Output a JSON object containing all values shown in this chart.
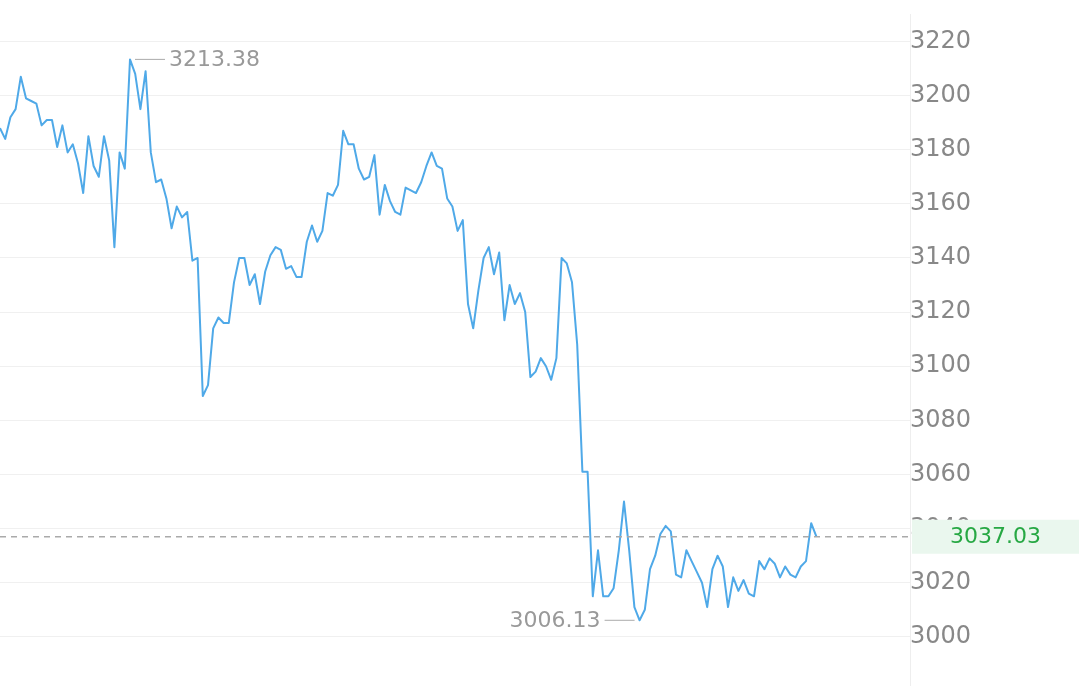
{
  "chart_data": {
    "type": "line",
    "categories": [
      null,
      null,
      null,
      null,
      null,
      null,
      null,
      null,
      null,
      null,
      null,
      null,
      null,
      null,
      null,
      null,
      null,
      null,
      null,
      null,
      null,
      null,
      null,
      null,
      null,
      null,
      null,
      null,
      null,
      null,
      null,
      null,
      null,
      null,
      null,
      null,
      null,
      null,
      null,
      null,
      null,
      null,
      null,
      null,
      null,
      null,
      null,
      null,
      null,
      null,
      null,
      null,
      null,
      null,
      null,
      null,
      null,
      null,
      null,
      null,
      null,
      null,
      null,
      null,
      null,
      null,
      null,
      null,
      null,
      null,
      null,
      null,
      null,
      null,
      null,
      null,
      null,
      null,
      null,
      null,
      null,
      null,
      null,
      null,
      null,
      null,
      null,
      null,
      null,
      null,
      null,
      null,
      null,
      null,
      null,
      null,
      null,
      null,
      null,
      null,
      null,
      null,
      null,
      null,
      null,
      null,
      null,
      null,
      null,
      null,
      null,
      null,
      null,
      null,
      null,
      null,
      null,
      null,
      null,
      null,
      null,
      null,
      null,
      null,
      null,
      null,
      null,
      null,
      null,
      null,
      null,
      null,
      null,
      null,
      null,
      null,
      null,
      null,
      null,
      null,
      null,
      null,
      null,
      null,
      null,
      null,
      null,
      null,
      null,
      null,
      null,
      null,
      null,
      null,
      null,
      null,
      null,
      null,
      null,
      null,
      null,
      null,
      null,
      null,
      null,
      null,
      null,
      null,
      null,
      null,
      null,
      null,
      null,
      null,
      null,
      null
    ],
    "series": [
      {
        "color": "#4fa9e8",
        "values": [
          3188,
          3184,
          3192,
          3195,
          3207,
          3199,
          3198,
          3197,
          3189,
          3191,
          3191,
          3181,
          3189,
          3179,
          3182,
          3175,
          3164,
          3185,
          3174,
          3170,
          3185,
          3176,
          3144,
          3179,
          3173,
          3213.38,
          3208,
          3195,
          3209,
          3179,
          3168,
          3169,
          3162,
          3151,
          3159,
          3155,
          3157,
          3139,
          3140,
          3089,
          3093,
          3114,
          3118,
          3116,
          3116,
          3131,
          3140,
          3140,
          3130,
          3134,
          3123,
          3135,
          3141,
          3144,
          3143,
          3136,
          3137,
          3133,
          3133,
          3146,
          3152,
          3146,
          3150,
          3164,
          3163,
          3167,
          3187,
          3182,
          3182,
          3173,
          3169,
          3170,
          3178,
          3156,
          3167,
          3161,
          3157,
          3156,
          3166,
          3165,
          3164,
          3168,
          3174,
          3179,
          3174,
          3173,
          3162,
          3159,
          3150,
          3154,
          3123,
          3114,
          3128,
          3140,
          3144,
          3134,
          3142,
          3117,
          3130,
          3123,
          3127,
          3120,
          3096,
          3098,
          3103,
          3100,
          3095,
          3103,
          3140,
          3138,
          3131,
          3108,
          3061,
          3061,
          3015,
          3032,
          3015,
          3015,
          3018,
          3032,
          3050,
          3032,
          3011,
          3006.13,
          3010,
          3025,
          3030,
          3038,
          3041,
          3039,
          3023,
          3022,
          3032,
          3028,
          3024,
          3020,
          3011,
          3025,
          3030,
          3026,
          3011,
          3022,
          3017,
          3021,
          3016,
          3015,
          3028,
          3025,
          3029,
          3027,
          3022,
          3026,
          3023,
          3022,
          3026,
          3028,
          3042,
          3037.03,
          null,
          null,
          null,
          null,
          null,
          null,
          null,
          null,
          null,
          null,
          null,
          null,
          null,
          null,
          null,
          null,
          null,
          null
        ]
      }
    ],
    "ylim": [
      2982,
      3230
    ],
    "yticks": [
      3000,
      3020,
      3040,
      3060,
      3080,
      3100,
      3120,
      3140,
      3160,
      3180,
      3200,
      3220
    ],
    "grid": "y",
    "legend": false,
    "marker": "none",
    "line_style": "solid",
    "tick_labels": "y",
    "ref_lines": [
      {
        "axis": "y",
        "value": 3037.03,
        "label": "3037.03",
        "color": "#aaaaaa",
        "line_style": "dashed"
      }
    ],
    "annotations": [
      "3213.38",
      "3006.13"
    ]
  }
}
